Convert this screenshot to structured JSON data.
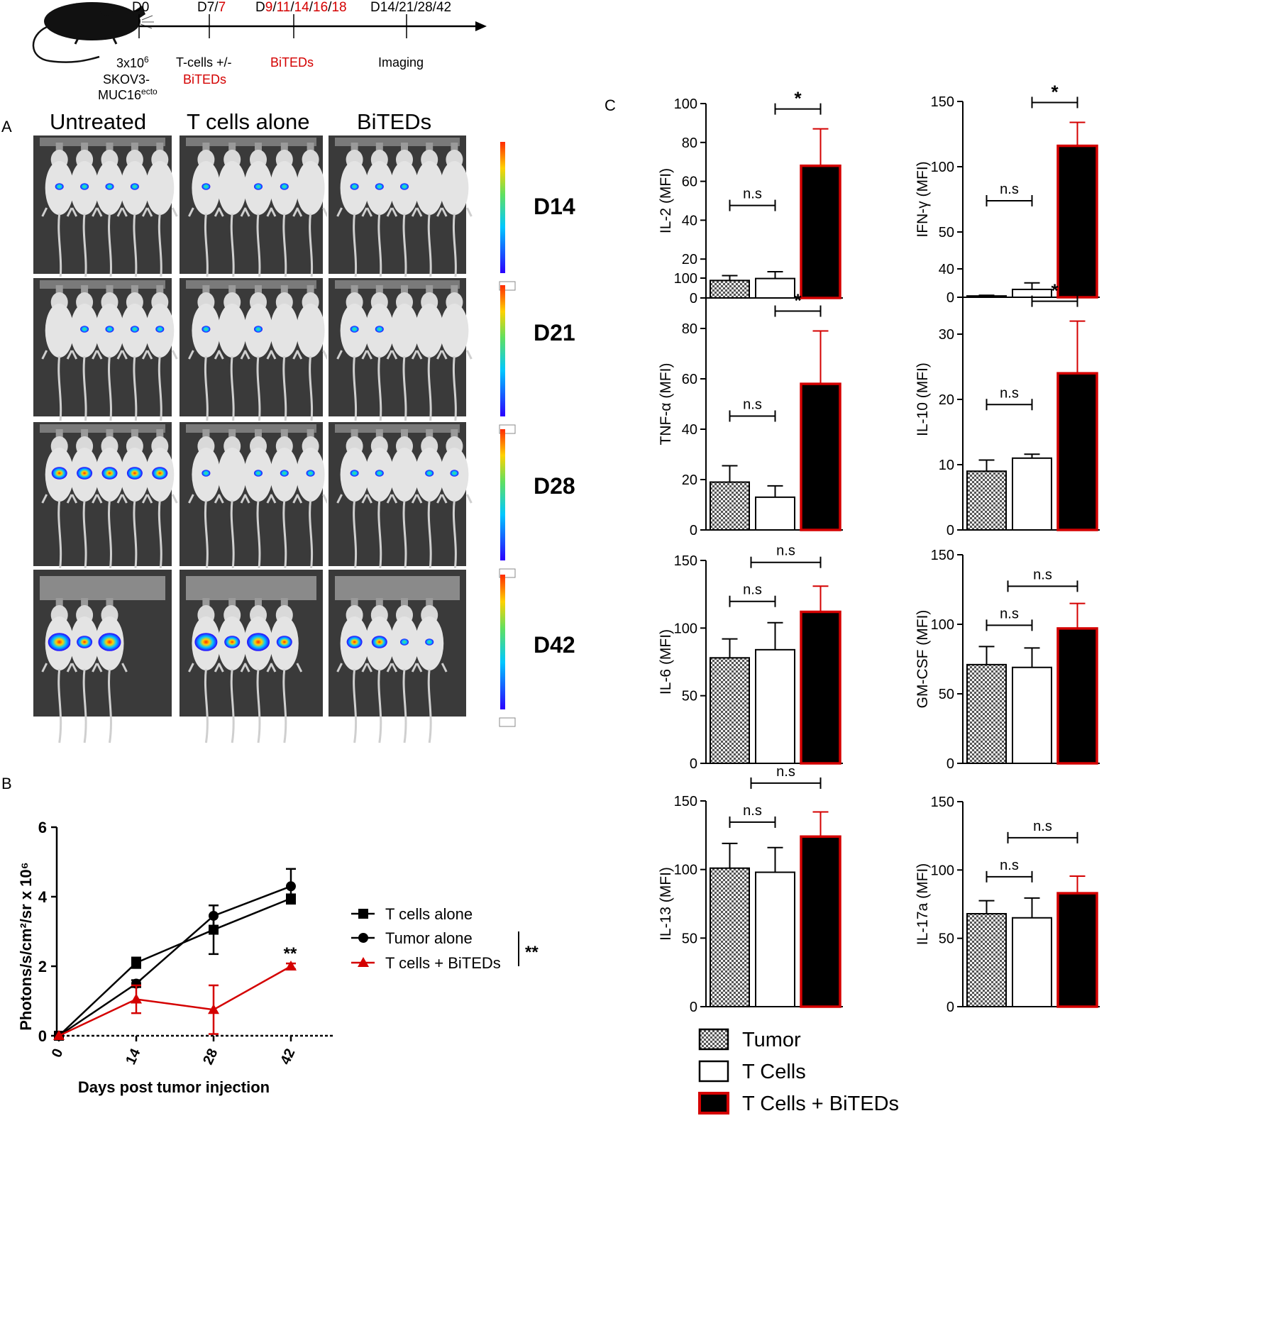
{
  "timeline": {
    "d0": "D0",
    "d7_black": "D7/",
    "d7_red": "7",
    "d9_prefix": "D",
    "d9_red1": "9",
    "d9_sep1": "/",
    "d9_red2": "11",
    "d9_sep2": "/",
    "d9_red3": "14",
    "d9_sep3": "/",
    "d9_red4": "16",
    "d9_sep4": "/",
    "d9_red5": "18",
    "imaging_days": "D14/21/28/42",
    "inject_line1": "3x10",
    "inject_sup": "6",
    "inject_line2": "SKOV3-",
    "inject_line3": "MUC16",
    "inject_line3_sup": "ecto",
    "tcells_line1": "T-cells +/-",
    "tcells_line2": "BiTEDs",
    "bited_label": "BiTEDs",
    "imaging_label": "Imaging"
  },
  "panel_a": {
    "letter": "A",
    "columns": [
      "Untreated",
      "T cells alone",
      "BiTEDs"
    ],
    "days": [
      "D14",
      "D21",
      "D28",
      "D42"
    ],
    "colors": {
      "low": "#2a00ff",
      "mid": "#00c8ff",
      "high": "#ffd200",
      "peak": "#ff2a00"
    }
  },
  "panel_b": {
    "letter": "B",
    "significance": "**",
    "legend_sig": "**"
  },
  "panel_c": {
    "letter": "C",
    "legend": [
      "Tumor",
      "T Cells",
      "T Cells + BiTEDs"
    ]
  },
  "chart_data": [
    {
      "type": "line",
      "id": "tumor-growth",
      "xlabel": "Days post tumor injection",
      "ylabel": "Photons/s/cm²/sr x 10⁶",
      "x": [
        0,
        14,
        28,
        42
      ],
      "xticks": [
        "0",
        "14",
        "28",
        "42"
      ],
      "yticks": [
        "0",
        "2",
        "4",
        "6"
      ],
      "ylim": [
        0,
        6
      ],
      "series": [
        {
          "name": "T cells alone",
          "marker": "square",
          "color": "#000000",
          "values": [
            0,
            2.1,
            3.05,
            3.95
          ],
          "err": [
            0,
            0.15,
            0.7,
            0.1
          ]
        },
        {
          "name": "Tumor alone",
          "marker": "circle",
          "color": "#000000",
          "values": [
            0,
            1.5,
            3.45,
            4.3
          ],
          "err": [
            0,
            0.1,
            0.3,
            0.5
          ]
        },
        {
          "name": "T cells + BiTEDs",
          "marker": "triangle",
          "color": "#d40000",
          "values": [
            0,
            1.05,
            0.75,
            2.0
          ],
          "err": [
            0,
            0.4,
            0.7,
            0.08
          ]
        }
      ]
    },
    {
      "type": "bar",
      "id": "il2",
      "ylabel": "IL-2 (MFI)",
      "categories": [
        "Tumor",
        "T Cells",
        "T Cells + BiTEDs"
      ],
      "values": [
        9,
        10,
        68
      ],
      "err": [
        2.5,
        3.5,
        19
      ],
      "ylim": [
        0,
        100
      ],
      "yticks": [
        "0",
        "20",
        "40",
        "60",
        "80",
        "100"
      ],
      "sig_low": "n.s",
      "sig_high": "*"
    },
    {
      "type": "bar",
      "id": "ifng",
      "ylabel": "IFN-γ (MFI)",
      "categories": [
        "Tumor",
        "T Cells",
        "T Cells + BiTEDs"
      ],
      "values": [
        1,
        6,
        116
      ],
      "err": [
        0.5,
        5,
        18
      ],
      "ylim": [
        0,
        150
      ],
      "yticks": [
        "0",
        "50",
        "100",
        "150"
      ],
      "sig_low": "n.s",
      "sig_high": "*"
    },
    {
      "type": "bar",
      "id": "tnfa",
      "ylabel": "TNF-α (MFI)",
      "categories": [
        "Tumor",
        "T Cells",
        "T Cells + BiTEDs"
      ],
      "values": [
        19,
        13,
        58
      ],
      "err": [
        6.5,
        4.5,
        21
      ],
      "ylim": [
        0,
        100
      ],
      "yticks": [
        "0",
        "20",
        "40",
        "60",
        "80",
        "100"
      ],
      "sig_low": "n.s",
      "sig_high": "*"
    },
    {
      "type": "bar",
      "id": "il10",
      "ylabel": "IL-10 (MFI)",
      "categories": [
        "Tumor",
        "T Cells",
        "T Cells + BiTEDs"
      ],
      "values": [
        9,
        11,
        24
      ],
      "err": [
        1.7,
        0.6,
        8
      ],
      "ylim": [
        0,
        40
      ],
      "yticks": [
        "0",
        "10",
        "20",
        "30",
        "40"
      ],
      "sig_low": "n.s",
      "sig_high": "*"
    },
    {
      "type": "bar",
      "id": "il6",
      "ylabel": "IL-6 (MFI)",
      "categories": [
        "Tumor",
        "T Cells",
        "T Cells + BiTEDs"
      ],
      "values": [
        78,
        84,
        112
      ],
      "err": [
        14,
        20,
        19
      ],
      "ylim": [
        0,
        150
      ],
      "yticks": [
        "0",
        "50",
        "100",
        "150"
      ],
      "sig_low": "n.s",
      "sig_high": "n.s"
    },
    {
      "type": "bar",
      "id": "gmcsf",
      "ylabel": "GM-CSF (MFI)",
      "categories": [
        "Tumor",
        "T Cells",
        "T Cells + BiTEDs"
      ],
      "values": [
        71,
        69,
        97
      ],
      "err": [
        13,
        14,
        18
      ],
      "ylim": [
        0,
        150
      ],
      "yticks": [
        "0",
        "50",
        "100",
        "150"
      ],
      "sig_low": "n.s",
      "sig_high": "n.s"
    },
    {
      "type": "bar",
      "id": "il13",
      "ylabel": "IL-13 (MFI)",
      "categories": [
        "Tumor",
        "T Cells",
        "T Cells + BiTEDs"
      ],
      "values": [
        101,
        98,
        124
      ],
      "err": [
        18,
        18,
        18
      ],
      "ylim": [
        0,
        150
      ],
      "yticks": [
        "0",
        "50",
        "100",
        "150"
      ],
      "sig_low": "n.s",
      "sig_high": "n.s"
    },
    {
      "type": "bar",
      "id": "il17a",
      "ylabel": "IL-17a (MFI)",
      "categories": [
        "Tumor",
        "T Cells",
        "T Cells + BiTEDs"
      ],
      "values": [
        68,
        65,
        83
      ],
      "err": [
        9.5,
        14.5,
        12.5
      ],
      "ylim": [
        0,
        150
      ],
      "yticks": [
        "0",
        "50",
        "100",
        "150"
      ],
      "sig_low": "n.s",
      "sig_high": "n.s"
    }
  ]
}
